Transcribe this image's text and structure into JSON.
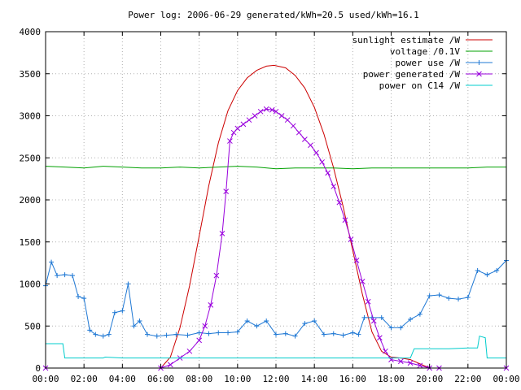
{
  "chart_data": {
    "type": "line",
    "title": "Power log: 2006-06-29 generated/kWh=20.5 used/kWh=16.1",
    "xlabel": "",
    "ylabel": "",
    "xlim": [
      0,
      24
    ],
    "ylim": [
      0,
      4000
    ],
    "grid": true,
    "legend": "top-right",
    "x_ticks": [
      "00:00",
      "02:00",
      "04:00",
      "06:00",
      "08:00",
      "10:00",
      "12:00",
      "14:00",
      "16:00",
      "18:00",
      "20:00",
      "22:00",
      "00:00"
    ],
    "y_ticks": [
      "0",
      "500",
      "1000",
      "1500",
      "2000",
      "2500",
      "3000",
      "3500",
      "4000"
    ],
    "series": [
      {
        "name": "sunlight estimate /W",
        "color": "#cc0000",
        "marker": "none",
        "x": [
          6.0,
          6.5,
          7.0,
          7.5,
          8.0,
          8.5,
          9.0,
          9.5,
          10.0,
          10.5,
          11.0,
          11.5,
          11.9,
          12.5,
          13.0,
          13.5,
          14.0,
          14.5,
          15.0,
          15.5,
          16.0,
          16.5,
          17.0,
          17.5,
          18.0,
          18.5,
          19.0,
          19.5,
          20.0
        ],
        "y": [
          0,
          130,
          480,
          980,
          1570,
          2170,
          2680,
          3060,
          3300,
          3450,
          3540,
          3590,
          3600,
          3570,
          3480,
          3330,
          3100,
          2780,
          2380,
          1920,
          1400,
          880,
          430,
          200,
          130,
          120,
          100,
          50,
          0
        ]
      },
      {
        "name": "voltage /0.1V",
        "color": "#00a000",
        "marker": "none",
        "x": [
          0,
          1,
          2,
          3,
          4,
          5,
          6,
          7,
          8,
          9,
          10,
          11,
          12,
          13,
          14,
          15,
          16,
          17,
          18,
          19,
          20,
          21,
          22,
          23,
          24
        ],
        "y": [
          2400,
          2390,
          2380,
          2400,
          2390,
          2380,
          2380,
          2390,
          2380,
          2390,
          2400,
          2390,
          2370,
          2380,
          2380,
          2380,
          2370,
          2380,
          2380,
          2380,
          2380,
          2380,
          2380,
          2390,
          2390
        ]
      },
      {
        "name": "power use /W",
        "color": "#1f78d4",
        "marker": "plus",
        "x": [
          0,
          0.3,
          0.6,
          1.0,
          1.4,
          1.7,
          2.0,
          2.3,
          2.6,
          3.0,
          3.3,
          3.6,
          4.0,
          4.3,
          4.6,
          4.9,
          5.3,
          5.8,
          6.3,
          6.8,
          7.4,
          8.0,
          8.5,
          9.0,
          9.5,
          10.0,
          10.5,
          11.0,
          11.5,
          12.0,
          12.5,
          13.0,
          13.5,
          14.0,
          14.5,
          15.0,
          15.5,
          16.0,
          16.3,
          16.6,
          17.0,
          17.5,
          18.0,
          18.5,
          19.0,
          19.5,
          20.0,
          20.5,
          21.0,
          21.5,
          22.0,
          22.5,
          23.0,
          23.5,
          24.0
        ],
        "y": [
          980,
          1260,
          1100,
          1110,
          1100,
          850,
          830,
          450,
          400,
          380,
          400,
          660,
          680,
          1000,
          500,
          560,
          400,
          380,
          390,
          400,
          390,
          420,
          410,
          420,
          420,
          430,
          560,
          500,
          560,
          400,
          410,
          380,
          530,
          560,
          400,
          410,
          390,
          420,
          400,
          600,
          600,
          600,
          480,
          480,
          580,
          640,
          860,
          870,
          830,
          820,
          840,
          1160,
          1110,
          1160,
          1280
        ]
      },
      {
        "name": "power generated /W",
        "color": "#9900dd",
        "marker": "cross",
        "x": [
          0,
          6.0,
          6.5,
          7.0,
          7.5,
          8.0,
          8.3,
          8.6,
          8.9,
          9.2,
          9.4,
          9.6,
          9.8,
          10.0,
          10.3,
          10.6,
          10.9,
          11.2,
          11.5,
          11.8,
          12.0,
          12.3,
          12.6,
          12.9,
          13.2,
          13.5,
          13.8,
          14.1,
          14.4,
          14.7,
          15.0,
          15.3,
          15.6,
          15.9,
          16.2,
          16.5,
          16.8,
          17.1,
          17.4,
          17.7,
          18.0,
          18.5,
          19.0,
          19.5,
          20.0,
          20.5,
          24.0
        ],
        "y": [
          0,
          0,
          40,
          120,
          200,
          330,
          500,
          750,
          1100,
          1600,
          2100,
          2700,
          2800,
          2850,
          2900,
          2950,
          3000,
          3050,
          3080,
          3070,
          3050,
          3000,
          2950,
          2880,
          2800,
          2720,
          2650,
          2560,
          2450,
          2320,
          2160,
          1970,
          1760,
          1530,
          1280,
          1030,
          790,
          560,
          360,
          200,
          100,
          80,
          60,
          30,
          0,
          0,
          0
        ]
      },
      {
        "name": "power on C14 /W",
        "color": "#00cccc",
        "marker": "none",
        "x": [
          0,
          0.9,
          1.0,
          3.0,
          3.1,
          4.0,
          8.0,
          12.0,
          16.0,
          18.0,
          19.0,
          19.2,
          20.0,
          21.0,
          22.0,
          22.5,
          22.6,
          22.9,
          23.0,
          24.0
        ],
        "y": [
          290,
          290,
          120,
          120,
          130,
          120,
          120,
          120,
          120,
          120,
          120,
          230,
          230,
          230,
          240,
          240,
          380,
          360,
          120,
          120
        ]
      }
    ]
  }
}
